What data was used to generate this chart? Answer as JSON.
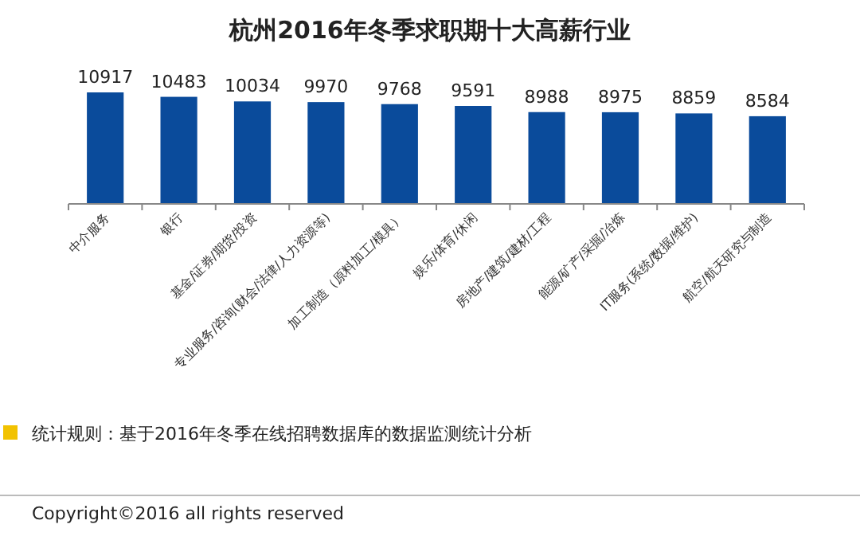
{
  "chart_data": {
    "type": "bar",
    "title": "杭州2016年冬季求职期十大高薪行业",
    "categories": [
      "中介服务",
      "银行",
      "基金/证券/期货/投资",
      "专业服务/咨询(财会/法律/人力资源等)",
      "加工制造（原料加工/模具）",
      "娱乐/体育/休闲",
      "房地产/建筑/建材/工程",
      "能源/矿产/采掘/冶炼",
      "IT服务(系统/数据/维护)",
      "航空/航天研究与制造"
    ],
    "values": [
      10917,
      10483,
      10034,
      9970,
      9768,
      9591,
      8988,
      8975,
      8859,
      8584
    ],
    "color": "#0a4b9b",
    "data_labels": true,
    "annotations": [
      "统计规则：基于2016年冬季在线招聘数据库的数据监测统计分析",
      "Copyright©2016 all rights reserved"
    ]
  }
}
